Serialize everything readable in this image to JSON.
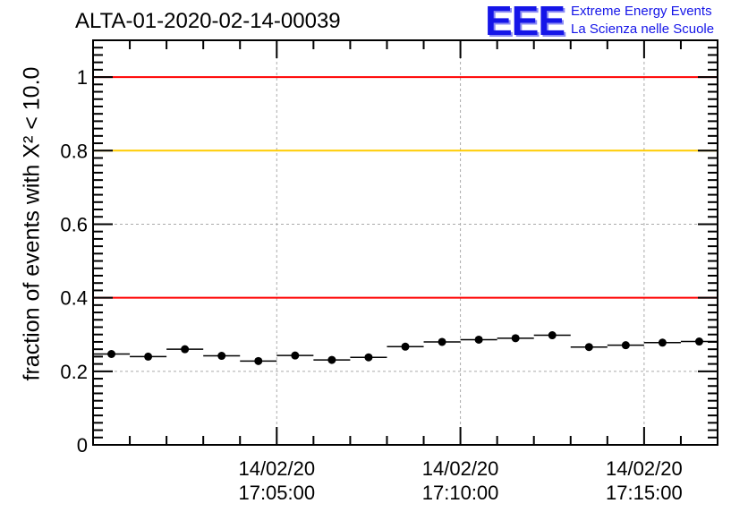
{
  "header": {
    "title": "ALTA-01-2020-02-14-00039",
    "logo_mark": "EEE",
    "logo_line1": "Extreme Energy Events",
    "logo_line2": "La Scienza nelle Scuole"
  },
  "chart_data": {
    "type": "scatter",
    "title": "ALTA-01-2020-02-14-00039",
    "xlabel": "",
    "ylabel": "fraction of events with X² < 10.0",
    "ylim": [
      0,
      1.1
    ],
    "xlim_minutes": [
      17.0,
      34.0
    ],
    "x_tick_labels": [
      {
        "x_minutes": 22,
        "date": "14/02/20",
        "time": "17:05:00"
      },
      {
        "x_minutes": 27,
        "date": "14/02/20",
        "time": "17:10:00"
      },
      {
        "x_minutes": 32,
        "date": "14/02/20",
        "time": "17:15:00"
      }
    ],
    "y_ticks": [
      0,
      0.2,
      0.4,
      0.6,
      0.8,
      1
    ],
    "y_tick_labels": [
      "0",
      "0.2",
      "0.4",
      "0.6",
      "0.8",
      "1"
    ],
    "grid": true,
    "reference_lines": [
      {
        "y": 1.0,
        "color": "#ff0000"
      },
      {
        "y": 0.8,
        "color": "#ffcc00"
      },
      {
        "y": 0.4,
        "color": "#ff0000"
      }
    ],
    "bin_width_minutes": 1,
    "series": [
      {
        "marker_color": "#000000",
        "x_minutes": [
          17.5,
          18.5,
          19.5,
          20.5,
          21.5,
          22.5,
          23.5,
          24.5,
          25.5,
          26.5,
          27.5,
          28.5,
          29.5,
          30.5,
          31.5,
          32.5,
          33.5
        ],
        "values": [
          0.247,
          0.24,
          0.26,
          0.242,
          0.228,
          0.243,
          0.231,
          0.238,
          0.267,
          0.28,
          0.286,
          0.29,
          0.298,
          0.266,
          0.271,
          0.278,
          0.281
        ]
      }
    ]
  }
}
